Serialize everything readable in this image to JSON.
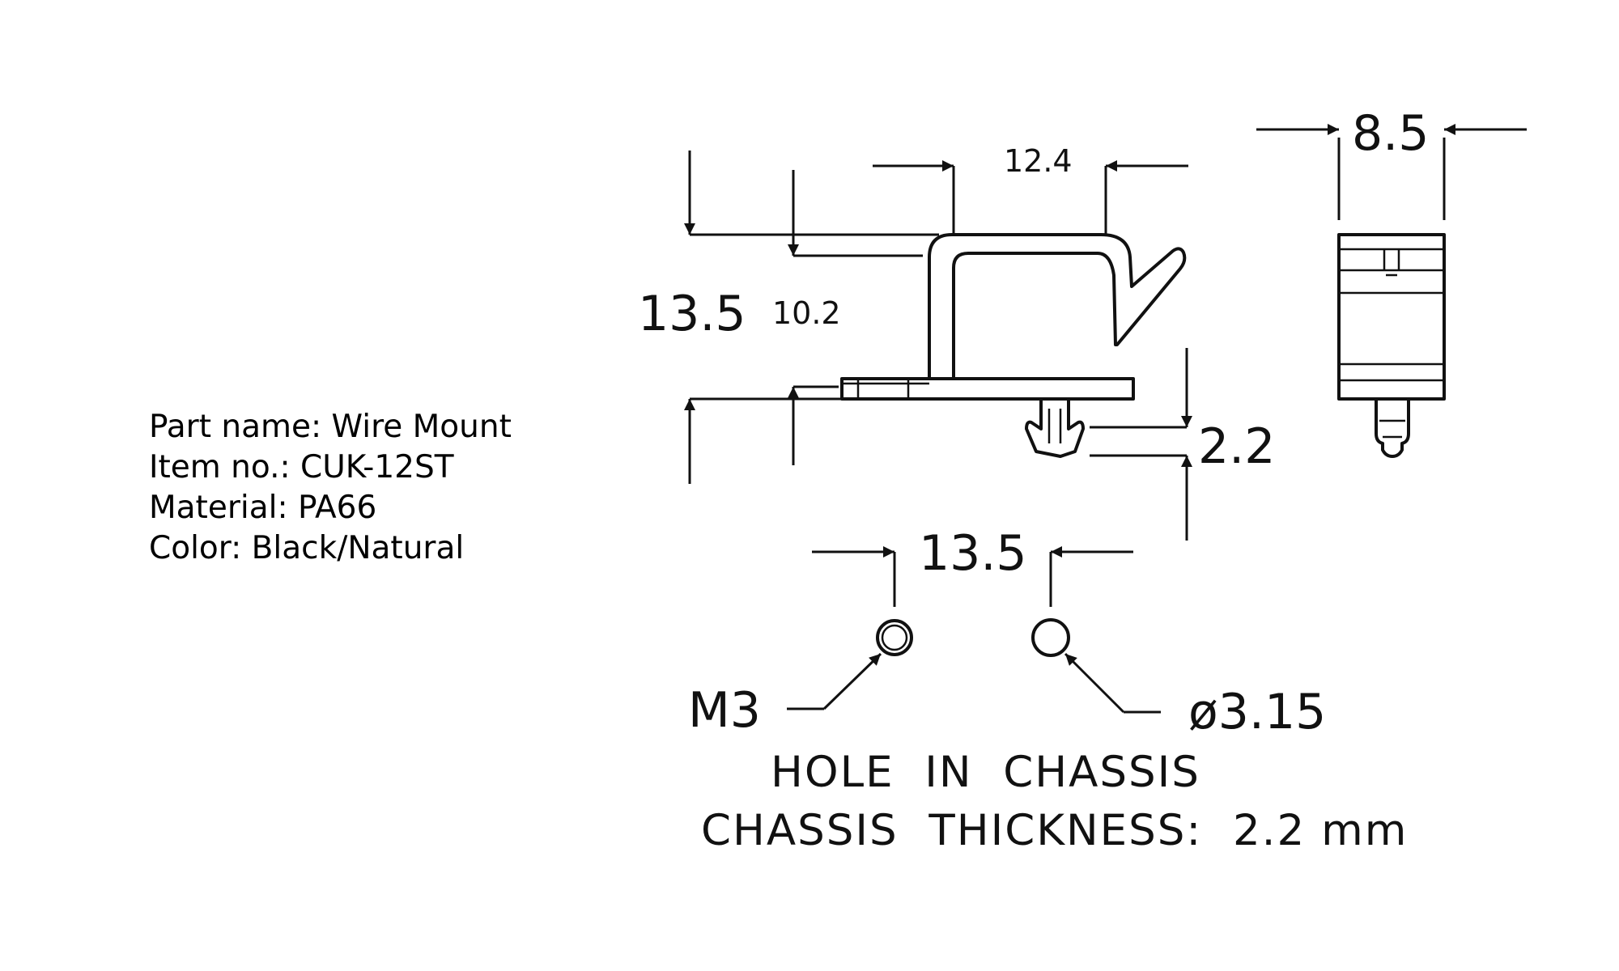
{
  "specs": {
    "part_name": "Part name: Wire Mount",
    "item_no": "Item no.: CUK-12ST",
    "material": "Material: PA66",
    "color": "Color: Black/Natural"
  },
  "dimensions": {
    "width_top": "12.4",
    "height_total": "13.5",
    "height_inner": "10.2",
    "chassis_gap": "2.2",
    "side_width": "8.5",
    "hole_spacing": "13.5"
  },
  "holes": {
    "thread_label": "M3",
    "diameter_label": "ø3.15"
  },
  "notes": {
    "line1": "HOLE  IN  CHASSIS",
    "line2": "CHASSIS  THICKNESS:  2.2 mm"
  }
}
